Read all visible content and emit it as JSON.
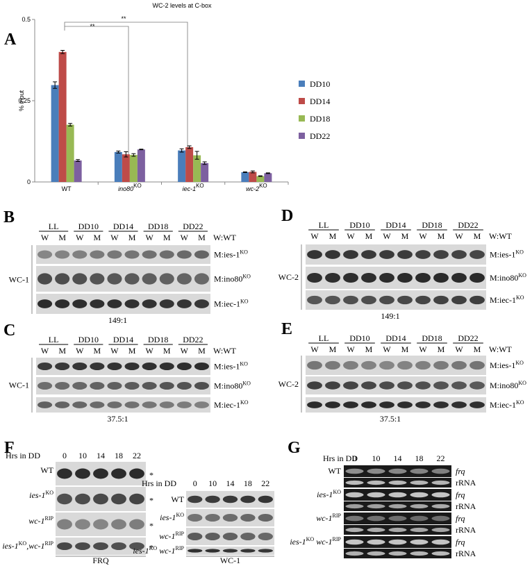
{
  "chart_data": {
    "type": "bar",
    "title": "WC-2 levels at C-box",
    "y_label": "% input",
    "panel": "A",
    "categories": [
      [
        "WT"
      ],
      [
        "ino80",
        "KO"
      ],
      [
        "iec-1",
        "KO"
      ],
      [
        "wc-2",
        "KO"
      ]
    ],
    "series": [
      {
        "name": "DD10",
        "color": "#4a7ebb",
        "values": [
          0.298,
          0.092,
          0.097,
          0.03
        ],
        "errors": [
          0.01,
          0.003,
          0.005,
          0.001
        ]
      },
      {
        "name": "DD14",
        "color": "#be4b48",
        "values": [
          0.4,
          0.085,
          0.107,
          0.031
        ],
        "errors": [
          0.005,
          0.008,
          0.004,
          0.003
        ]
      },
      {
        "name": "DD18",
        "color": "#98b954",
        "values": [
          0.176,
          0.083,
          0.082,
          0.018
        ],
        "errors": [
          0.004,
          0.004,
          0.012,
          0.001
        ]
      },
      {
        "name": "DD22",
        "color": "#7d60a0",
        "values": [
          0.066,
          0.1,
          0.058,
          0.027
        ],
        "errors": [
          0.003,
          0.001,
          0.004,
          0.001
        ]
      }
    ],
    "ylim": [
      0,
      0.5
    ],
    "yticks": [
      0,
      0.25,
      0.5
    ],
    "annotations": [
      "**",
      "**"
    ]
  },
  "panels": [
    {
      "label": "B",
      "columns": [
        "LL",
        "DD10",
        "DD14",
        "DD18",
        "DD22"
      ],
      "lanes": [
        "W",
        "M"
      ],
      "key": "W:WT",
      "protein": "WC-1",
      "rows": [
        [
          "M:ies-1",
          "KO"
        ],
        [
          "M:ino80",
          "KO"
        ],
        [
          "M:iec-1",
          "KO"
        ]
      ],
      "ratio": "149:1"
    },
    {
      "label": "C",
      "columns": [
        "LL",
        "DD10",
        "DD14",
        "DD18",
        "DD22"
      ],
      "lanes": [
        "W",
        "M"
      ],
      "key": "W:WT",
      "protein": "WC-1",
      "rows": [
        [
          "M:ies-1",
          "KO"
        ],
        [
          "M:ino80",
          "KO"
        ],
        [
          "M:iec-1",
          "KO"
        ]
      ],
      "ratio": "37.5:1"
    },
    {
      "label": "D",
      "columns": [
        "LL",
        "DD10",
        "DD14",
        "DD18",
        "DD22"
      ],
      "lanes": [
        "W",
        "M"
      ],
      "key": "W:WT",
      "protein": "WC-2",
      "rows": [
        [
          "M:ies-1",
          "KO"
        ],
        [
          "M:ino80",
          "KO"
        ],
        [
          "M:iec-1",
          "KO"
        ]
      ],
      "ratio": "149:1"
    },
    {
      "label": "E",
      "columns": [
        "LL",
        "DD10",
        "DD14",
        "DD18",
        "DD22"
      ],
      "lanes": [
        "W",
        "M"
      ],
      "key": "W:WT",
      "protein": "WC-2",
      "rows": [
        [
          "M:ies-1",
          "KO"
        ],
        [
          "M:ino80",
          "KO"
        ],
        [
          "M:iec-1",
          "KO"
        ]
      ],
      "ratio": "37.5:1"
    }
  ],
  "panel_f": {
    "label": "F",
    "blots": [
      {
        "x_label": "Hrs in DD",
        "times": [
          0,
          10,
          14,
          18,
          22
        ],
        "rows": [
          [
            "WT"
          ],
          [
            "ies-1",
            "KO"
          ],
          [
            "wc-1",
            "RIP"
          ],
          [
            "ies-1",
            "KO",
            ",wc-1",
            "RIP"
          ]
        ],
        "marker": "*",
        "caption": "FRQ"
      },
      {
        "x_label": "Hrs in DD",
        "times": [
          0,
          10,
          14,
          18,
          22
        ],
        "rows": [
          [
            "WT"
          ],
          [
            "ies-1",
            "KO"
          ],
          [
            "wc-1",
            "RIP"
          ],
          [
            "ies-1",
            "KO",
            " wc-1",
            "RIP"
          ]
        ],
        "caption": "WC-1"
      }
    ]
  },
  "panel_g": {
    "label": "G",
    "x_label": "Hrs in DD",
    "times": [
      0,
      10,
      14,
      18,
      22
    ],
    "probes": [
      "frq",
      "rRNA"
    ],
    "rows": [
      [
        "WT"
      ],
      [
        "ies-1",
        "KO"
      ],
      [
        "wc-1",
        "RIP"
      ],
      [
        "ies-1",
        "KO",
        " wc-1",
        "RIP"
      ]
    ]
  }
}
